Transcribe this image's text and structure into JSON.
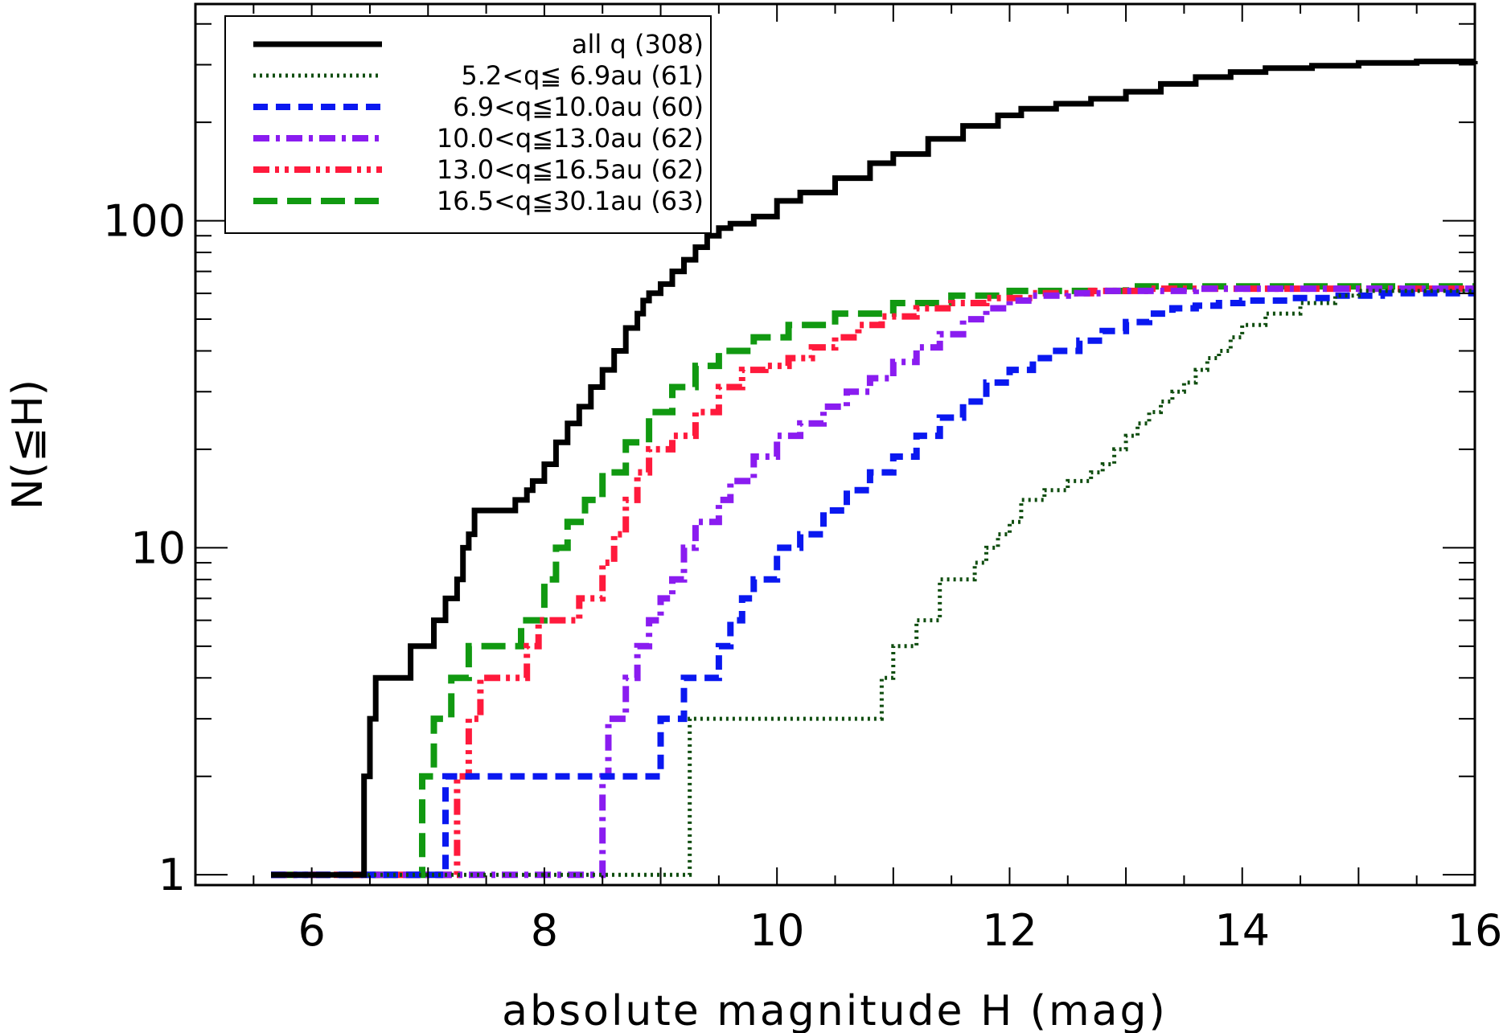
{
  "chart_data": {
    "type": "line",
    "xlabel": "absolute magnitude H (mag)",
    "ylabel": "N(≦H)",
    "xlim": [
      5,
      16
    ],
    "ylim": [
      0.93,
      460
    ],
    "yscale": "log",
    "x_ticks": [
      6,
      8,
      10,
      12,
      14,
      16
    ],
    "y_ticks": [
      1,
      10,
      100
    ],
    "legend_position": "top-left",
    "series": [
      {
        "name": "all q (308)",
        "color": "#000000",
        "style": "solid",
        "x": [
          5.65,
          6.45,
          6.5,
          6.55,
          6.6,
          6.65,
          6.7,
          6.75,
          6.85,
          7.0,
          7.05,
          7.15,
          7.25,
          7.3,
          7.35,
          7.4,
          7.45,
          7.55,
          7.6,
          7.7,
          7.75,
          7.85,
          7.9,
          8.0,
          8.1,
          8.2,
          8.3,
          8.4,
          8.5,
          8.6,
          8.7,
          8.8,
          8.85,
          8.9,
          9.0,
          9.1,
          9.2,
          9.3,
          9.4,
          9.5,
          9.6,
          9.8,
          10.0,
          10.2,
          10.5,
          10.8,
          11.0,
          11.3,
          11.6,
          11.9,
          12.1,
          12.4,
          12.7,
          13.0,
          13.3,
          13.6,
          13.9,
          14.2,
          14.6,
          15.0,
          15.5,
          16.0
        ],
        "y": [
          1,
          2,
          3,
          4,
          4,
          4,
          4,
          4,
          5,
          5,
          6,
          7,
          8,
          10,
          11,
          13,
          13,
          13,
          13,
          13,
          14,
          15,
          16,
          18,
          21,
          24,
          27,
          31,
          35,
          40,
          47,
          52,
          57,
          60,
          64,
          70,
          76,
          83,
          90,
          95,
          98,
          103,
          115,
          122,
          135,
          150,
          160,
          178,
          195,
          210,
          220,
          228,
          236,
          248,
          262,
          275,
          285,
          293,
          298,
          304,
          307,
          308
        ]
      },
      {
        "name": "5.2<q≦ 6.9au (61)",
        "color": "#0f4d0f",
        "style": "dotted",
        "x": [
          5.65,
          9.2,
          9.25,
          10.8,
          10.9,
          11.0,
          11.2,
          11.4,
          11.6,
          11.7,
          11.8,
          11.9,
          12.0,
          12.1,
          12.3,
          12.5,
          12.7,
          12.8,
          12.9,
          13.0,
          13.1,
          13.2,
          13.3,
          13.4,
          13.5,
          13.6,
          13.7,
          13.8,
          13.9,
          14.0,
          14.2,
          14.5,
          14.8,
          15.0,
          16.0
        ],
        "y": [
          1,
          1,
          3,
          3,
          4,
          5,
          6,
          8,
          8,
          9,
          10,
          11,
          12,
          14,
          15,
          16,
          17,
          18,
          20,
          22,
          24,
          26,
          28,
          30,
          32,
          35,
          38,
          40,
          44,
          48,
          52,
          56,
          59,
          61,
          61
        ]
      },
      {
        "name": "6.9<q≦10.0au (60)",
        "color": "#0a18f0",
        "style": "dashed",
        "x": [
          5.65,
          7.05,
          7.15,
          8.9,
          9.0,
          9.2,
          9.5,
          9.6,
          9.7,
          9.8,
          10.0,
          10.2,
          10.4,
          10.6,
          10.8,
          11.0,
          11.2,
          11.4,
          11.6,
          11.8,
          12.0,
          12.2,
          12.4,
          12.6,
          12.8,
          13.0,
          13.2,
          13.4,
          13.6,
          13.8,
          14.0,
          14.4,
          14.8,
          15.2,
          16.0
        ],
        "y": [
          1,
          1,
          2,
          2,
          3,
          4,
          5,
          6,
          7,
          8,
          10,
          11,
          13,
          15,
          17,
          19,
          22,
          25,
          28,
          32,
          35,
          38,
          40,
          43,
          46,
          49,
          52,
          54,
          55,
          56,
          57,
          58,
          59,
          60,
          60
        ]
      },
      {
        "name": "10.0<q≦13.0au (62)",
        "color": "#8a1cf0",
        "style": "dashdot",
        "x": [
          5.65,
          8.5,
          8.55,
          8.7,
          8.8,
          8.9,
          9.0,
          9.1,
          9.2,
          9.3,
          9.5,
          9.6,
          9.8,
          10.0,
          10.2,
          10.4,
          10.6,
          10.8,
          11.0,
          11.2,
          11.4,
          11.6,
          11.8,
          12.0,
          12.2,
          12.5,
          12.8,
          13.2,
          13.6,
          14.0,
          16.0
        ],
        "y": [
          1,
          2,
          3,
          4,
          5,
          6,
          7,
          8,
          10,
          12,
          14,
          16,
          19,
          22,
          24,
          27,
          30,
          33,
          37,
          41,
          45,
          50,
          54,
          57,
          59,
          60,
          61,
          61,
          62,
          62,
          62
        ]
      },
      {
        "name": "13.0<q≦16.5au (62)",
        "color": "#ff1a3c",
        "style": "dashdotdot",
        "x": [
          5.65,
          7.2,
          7.25,
          7.35,
          7.45,
          7.8,
          7.85,
          7.95,
          8.1,
          8.3,
          8.5,
          8.6,
          8.7,
          8.8,
          8.9,
          9.1,
          9.3,
          9.5,
          9.7,
          9.9,
          10.1,
          10.3,
          10.5,
          10.7,
          10.9,
          11.2,
          11.5,
          11.8,
          12.2,
          12.7,
          13.2,
          14.0,
          16.0
        ],
        "y": [
          1,
          1,
          2,
          3,
          4,
          4,
          5,
          6,
          6,
          7,
          9,
          11,
          14,
          17,
          20,
          22,
          26,
          31,
          35,
          36,
          38,
          41,
          44,
          48,
          51,
          54,
          56,
          58,
          60,
          61,
          62,
          62,
          62
        ]
      },
      {
        "name": "16.5<q≦30.1au (63)",
        "color": "#119911",
        "style": "longdash",
        "x": [
          5.65,
          6.9,
          6.95,
          7.05,
          7.2,
          7.35,
          7.5,
          7.8,
          8.0,
          8.1,
          8.2,
          8.35,
          8.5,
          8.7,
          8.9,
          9.1,
          9.3,
          9.5,
          9.8,
          10.1,
          10.5,
          11.0,
          11.5,
          12.0,
          13.0,
          16.0
        ],
        "y": [
          1,
          1,
          2,
          3,
          4,
          5,
          5,
          6,
          8,
          10,
          12,
          14,
          17,
          21,
          26,
          31,
          36,
          40,
          44,
          48,
          52,
          56,
          59,
          61,
          63,
          63
        ]
      }
    ]
  }
}
